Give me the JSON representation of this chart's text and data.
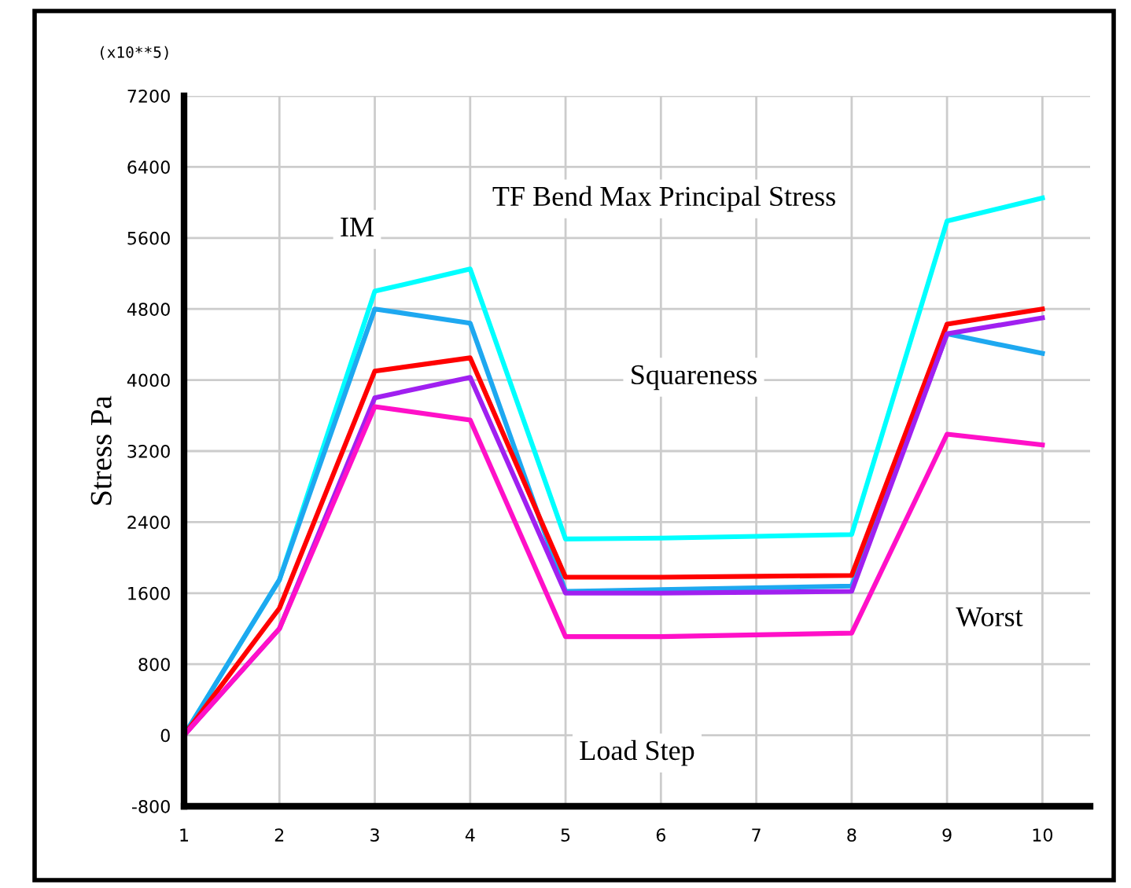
{
  "chart_data": {
    "type": "line",
    "title": "TF Bend Max Principal Stress",
    "xlabel": "Load Step",
    "ylabel": "Stress Pa",
    "annotations": [
      {
        "text": "(x10**5)"
      },
      {
        "text": "IM"
      },
      {
        "text": "Squareness"
      },
      {
        "text": "Worst"
      }
    ],
    "x": [
      1,
      2,
      3,
      4,
      5,
      6,
      7,
      8,
      9,
      10
    ],
    "series": [
      {
        "color": "#00ffff",
        "values": [
          0,
          1750,
          5000,
          5250,
          2210,
          2220,
          2240,
          2260,
          5790,
          6050
        ]
      },
      {
        "color": "#1ea8f0",
        "values": [
          0,
          1750,
          4800,
          4640,
          1620,
          1640,
          1660,
          1680,
          4520,
          4300
        ]
      },
      {
        "color": "#ff0000",
        "values": [
          0,
          1430,
          4100,
          4250,
          1780,
          1780,
          1790,
          1800,
          4630,
          4800
        ]
      },
      {
        "color": "#a020f0",
        "values": [
          0,
          1200,
          3800,
          4030,
          1600,
          1600,
          1610,
          1620,
          4520,
          4700
        ]
      },
      {
        "color": "#ff10c8",
        "values": [
          0,
          1200,
          3700,
          3550,
          1110,
          1110,
          1130,
          1150,
          3390,
          3270
        ]
      }
    ],
    "xlim": [
      1,
      10.5
    ],
    "xticks": [
      1,
      2,
      3,
      4,
      5,
      6,
      7,
      8,
      9,
      10
    ],
    "ylim": [
      -800,
      7200
    ],
    "yticks": [
      -800,
      0,
      800,
      1600,
      2400,
      3200,
      4000,
      4800,
      5600,
      6400,
      7200
    ],
    "grid": true,
    "legend": false,
    "marker": "none",
    "line_style": "solid"
  }
}
